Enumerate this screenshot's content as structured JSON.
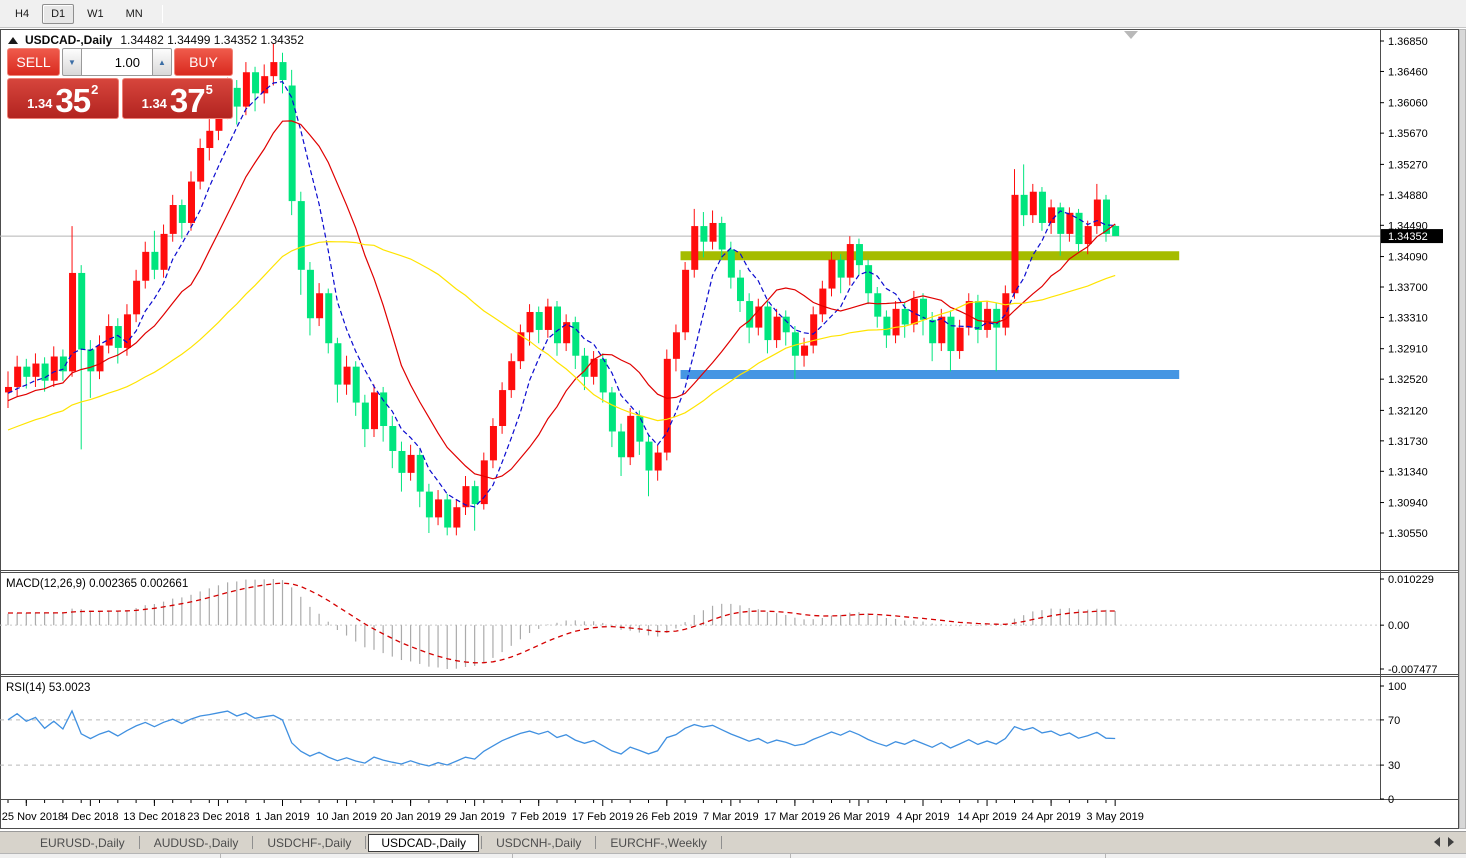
{
  "toolbar": {
    "timeframes": [
      "H4",
      "D1",
      "W1",
      "MN"
    ],
    "active": "D1"
  },
  "header": {
    "title": "USDCAD-,Daily",
    "ohlc": "1.34482 1.34499 1.34352 1.34352"
  },
  "trade_panel": {
    "sell_label": "SELL",
    "buy_label": "BUY",
    "volume": "1.00",
    "sell_price_big": "1.34",
    "sell_price_main": "35",
    "sell_price_sup": "2",
    "buy_price_big": "1.34",
    "buy_price_main": "37",
    "buy_price_sup": "5"
  },
  "price_axis": {
    "ticks": [
      "1.36850",
      "1.36460",
      "1.36060",
      "1.35670",
      "1.35270",
      "1.34880",
      "1.34490",
      "1.34090",
      "1.33700",
      "1.33310",
      "1.32910",
      "1.32520",
      "1.32120",
      "1.31730",
      "1.31340",
      "1.30940",
      "1.30550"
    ],
    "current": "1.34352"
  },
  "macd_panel": {
    "label": "MACD(12,26,9) 0.002365 0.002661",
    "axis_max": "0.010229",
    "axis_zero": "0.00",
    "axis_min": "-0.007477"
  },
  "rsi_panel": {
    "label": "RSI(14) 53.0023",
    "axis": [
      "100",
      "70",
      "30",
      "0"
    ]
  },
  "time_axis": {
    "labels": [
      "25 Nov 2018",
      "4 Dec 2018",
      "13 Dec 2018",
      "23 Dec 2018",
      "1 Jan 2019",
      "10 Jan 2019",
      "20 Jan 2019",
      "29 Jan 2019",
      "7 Feb 2019",
      "17 Feb 2019",
      "26 Feb 2019",
      "7 Mar 2019",
      "17 Mar 2019",
      "26 Mar 2019",
      "4 Apr 2019",
      "14 Apr 2019",
      "24 Apr 2019",
      "3 May 2019"
    ],
    "bars": [
      2,
      9,
      16,
      23,
      30,
      37,
      44,
      51,
      58,
      65,
      72,
      79,
      86,
      93,
      100,
      107,
      114,
      121
    ]
  },
  "bottom_tabs": {
    "items": [
      "EURUSD-,Daily",
      "AUDUSD-,Daily",
      "USDCHF-,Daily",
      "USDCAD-,Daily",
      "USDCNH-,Daily",
      "EURCHF-,Weekly"
    ],
    "active_index": 3
  },
  "colors": {
    "bull_candle": "#ff0d0d",
    "bear_candle": "#00e57e",
    "ma_fast": "#0a0acf",
    "ma_mid": "#e00000",
    "ma_slow": "#ffe400",
    "resistance_line": "#a5bc00",
    "support_line": "#4596e3",
    "ask_line": "#b4b4b4",
    "price_tag_bg": "#000000",
    "macd_histogram": "#ababab",
    "macd_signal": "#d40000",
    "rsi_line": "#4090e0",
    "panel_border": "#4d4d4d"
  },
  "chart_data": {
    "type": "candlestick",
    "symbol": "USDCAD-,Daily",
    "ask_price": 1.34352,
    "candles": [
      [
        1.3235,
        1.3262,
        1.3215,
        1.3242
      ],
      [
        1.3242,
        1.3282,
        1.323,
        1.3268
      ],
      [
        1.3268,
        1.3278,
        1.324,
        1.3255
      ],
      [
        1.3255,
        1.3285,
        1.3242,
        1.3272
      ],
      [
        1.3272,
        1.328,
        1.3236,
        1.325
      ],
      [
        1.325,
        1.3294,
        1.3242,
        1.3281
      ],
      [
        1.3281,
        1.329,
        1.325,
        1.3262
      ],
      [
        1.3262,
        1.3448,
        1.3255,
        1.3388
      ],
      [
        1.3388,
        1.3398,
        1.3162,
        1.329
      ],
      [
        1.329,
        1.3302,
        1.3228,
        1.3262
      ],
      [
        1.3262,
        1.3308,
        1.3252,
        1.3295
      ],
      [
        1.3295,
        1.3335,
        1.3285,
        1.332
      ],
      [
        1.332,
        1.333,
        1.3272,
        1.3292
      ],
      [
        1.3292,
        1.3348,
        1.3282,
        1.3335
      ],
      [
        1.3335,
        1.3392,
        1.3325,
        1.3378
      ],
      [
        1.3378,
        1.3428,
        1.3368,
        1.3415
      ],
      [
        1.3415,
        1.3442,
        1.338,
        1.3392
      ],
      [
        1.3392,
        1.345,
        1.3382,
        1.3438
      ],
      [
        1.3438,
        1.3488,
        1.3428,
        1.3475
      ],
      [
        1.3475,
        1.3482,
        1.3432,
        1.3452
      ],
      [
        1.3452,
        1.3518,
        1.3442,
        1.3505
      ],
      [
        1.3505,
        1.356,
        1.3495,
        1.3548
      ],
      [
        1.3548,
        1.3585,
        1.3532,
        1.357
      ],
      [
        1.357,
        1.361,
        1.3558,
        1.3598
      ],
      [
        1.3598,
        1.3638,
        1.3585,
        1.3625
      ],
      [
        1.3625,
        1.3635,
        1.3578,
        1.3601
      ],
      [
        1.3601,
        1.3658,
        1.359,
        1.3645
      ],
      [
        1.3645,
        1.3652,
        1.3595,
        1.3618
      ],
      [
        1.3618,
        1.3655,
        1.3605,
        1.364
      ],
      [
        1.364,
        1.3682,
        1.3628,
        1.3658
      ],
      [
        1.3658,
        1.367,
        1.3618,
        1.3635
      ],
      [
        1.3628,
        1.3648,
        1.3462,
        1.348
      ],
      [
        1.348,
        1.3492,
        1.336,
        1.3392
      ],
      [
        1.3392,
        1.3402,
        1.3308,
        1.333
      ],
      [
        1.333,
        1.3375,
        1.332,
        1.3362
      ],
      [
        1.3362,
        1.3368,
        1.3285,
        1.3298
      ],
      [
        1.3298,
        1.3305,
        1.3222,
        1.3245
      ],
      [
        1.3245,
        1.3282,
        1.3232,
        1.3268
      ],
      [
        1.3268,
        1.3275,
        1.3205,
        1.3222
      ],
      [
        1.3222,
        1.3232,
        1.3165,
        1.3188
      ],
      [
        1.3188,
        1.3245,
        1.3178,
        1.3235
      ],
      [
        1.3235,
        1.3242,
        1.3172,
        1.3192
      ],
      [
        1.3192,
        1.3205,
        1.3138,
        1.316
      ],
      [
        1.316,
        1.3172,
        1.3108,
        1.3132
      ],
      [
        1.3132,
        1.3168,
        1.3122,
        1.3155
      ],
      [
        1.3155,
        1.3162,
        1.3088,
        1.3108
      ],
      [
        1.3108,
        1.3118,
        1.3055,
        1.3075
      ],
      [
        1.3075,
        1.311,
        1.3065,
        1.3098
      ],
      [
        1.3098,
        1.3105,
        1.3052,
        1.3062
      ],
      [
        1.3062,
        1.3098,
        1.3052,
        1.3088
      ],
      [
        1.3088,
        1.3128,
        1.3078,
        1.3115
      ],
      [
        1.3115,
        1.3122,
        1.3058,
        1.3092
      ],
      [
        1.3092,
        1.3158,
        1.3085,
        1.3148
      ],
      [
        1.3148,
        1.3202,
        1.3138,
        1.3192
      ],
      [
        1.3192,
        1.3248,
        1.3182,
        1.3238
      ],
      [
        1.3238,
        1.3285,
        1.3228,
        1.3275
      ],
      [
        1.3275,
        1.3322,
        1.3265,
        1.3312
      ],
      [
        1.3312,
        1.3348,
        1.3295,
        1.3338
      ],
      [
        1.3338,
        1.3345,
        1.3298,
        1.3315
      ],
      [
        1.3315,
        1.3355,
        1.3305,
        1.3345
      ],
      [
        1.3345,
        1.3352,
        1.3282,
        1.3298
      ],
      [
        1.3298,
        1.3335,
        1.3288,
        1.3325
      ],
      [
        1.3325,
        1.3332,
        1.3265,
        1.3282
      ],
      [
        1.3282,
        1.3292,
        1.3238,
        1.3255
      ],
      [
        1.3255,
        1.3288,
        1.3245,
        1.3278
      ],
      [
        1.3278,
        1.3285,
        1.3222,
        1.3235
      ],
      [
        1.3235,
        1.3242,
        1.3165,
        1.3185
      ],
      [
        1.3185,
        1.3195,
        1.3128,
        1.3152
      ],
      [
        1.3152,
        1.3215,
        1.3142,
        1.3205
      ],
      [
        1.3205,
        1.3212,
        1.3155,
        1.3172
      ],
      [
        1.3172,
        1.318,
        1.3102,
        1.3135
      ],
      [
        1.3135,
        1.3168,
        1.3122,
        1.3158
      ],
      [
        1.3158,
        1.329,
        1.3148,
        1.3278
      ],
      [
        1.3278,
        1.3322,
        1.3262,
        1.3312
      ],
      [
        1.3312,
        1.3402,
        1.3302,
        1.3392
      ],
      [
        1.3392,
        1.347,
        1.3382,
        1.3448
      ],
      [
        1.3448,
        1.3466,
        1.3408,
        1.3428
      ],
      [
        1.3428,
        1.3468,
        1.3418,
        1.3452
      ],
      [
        1.3452,
        1.346,
        1.3405,
        1.3418
      ],
      [
        1.3418,
        1.3428,
        1.3368,
        1.3382
      ],
      [
        1.3382,
        1.3392,
        1.3338,
        1.3352
      ],
      [
        1.3352,
        1.3362,
        1.3298,
        1.3318
      ],
      [
        1.3318,
        1.3355,
        1.3308,
        1.3345
      ],
      [
        1.3345,
        1.3352,
        1.3285,
        1.3302
      ],
      [
        1.3302,
        1.3342,
        1.3292,
        1.3332
      ],
      [
        1.3332,
        1.334,
        1.3295,
        1.3312
      ],
      [
        1.3312,
        1.332,
        1.3252,
        1.3282
      ],
      [
        1.3282,
        1.3305,
        1.3268,
        1.3295
      ],
      [
        1.3295,
        1.3345,
        1.3285,
        1.3335
      ],
      [
        1.3335,
        1.3378,
        1.3325,
        1.3368
      ],
      [
        1.3368,
        1.3415,
        1.3358,
        1.3405
      ],
      [
        1.3405,
        1.3412,
        1.3362,
        1.3382
      ],
      [
        1.3382,
        1.3435,
        1.3372,
        1.3425
      ],
      [
        1.3425,
        1.3432,
        1.3385,
        1.3398
      ],
      [
        1.3398,
        1.3405,
        1.3348,
        1.3362
      ],
      [
        1.3362,
        1.337,
        1.3318,
        1.3332
      ],
      [
        1.3332,
        1.334,
        1.3292,
        1.3308
      ],
      [
        1.3308,
        1.3352,
        1.3298,
        1.3342
      ],
      [
        1.3342,
        1.335,
        1.3305,
        1.3322
      ],
      [
        1.3322,
        1.3365,
        1.3312,
        1.3355
      ],
      [
        1.3355,
        1.3362,
        1.3308,
        1.3328
      ],
      [
        1.3328,
        1.3338,
        1.3275,
        1.3298
      ],
      [
        1.3298,
        1.3342,
        1.3288,
        1.3332
      ],
      [
        1.3332,
        1.334,
        1.3262,
        1.3288
      ],
      [
        1.3288,
        1.3328,
        1.3278,
        1.3318
      ],
      [
        1.3318,
        1.3362,
        1.3308,
        1.3352
      ],
      [
        1.3352,
        1.336,
        1.3298,
        1.3315
      ],
      [
        1.3315,
        1.3352,
        1.3305,
        1.3342
      ],
      [
        1.3342,
        1.335,
        1.3262,
        1.3318
      ],
      [
        1.3318,
        1.3372,
        1.3308,
        1.3362
      ],
      [
        1.3362,
        1.3521,
        1.3355,
        1.3488
      ],
      [
        1.3488,
        1.3527,
        1.3448,
        1.3462
      ],
      [
        1.3462,
        1.3502,
        1.3452,
        1.3492
      ],
      [
        1.3492,
        1.3498,
        1.3442,
        1.3452
      ],
      [
        1.3452,
        1.3482,
        1.3438,
        1.3472
      ],
      [
        1.3472,
        1.3478,
        1.341,
        1.3438
      ],
      [
        1.3438,
        1.3472,
        1.3428,
        1.3465
      ],
      [
        1.3465,
        1.347,
        1.3415,
        1.3425
      ],
      [
        1.3425,
        1.3455,
        1.3412,
        1.3448
      ],
      [
        1.3448,
        1.3502,
        1.3438,
        1.3482
      ],
      [
        1.3482,
        1.3488,
        1.3428,
        1.3438
      ],
      [
        1.34482,
        1.34499,
        1.34352,
        1.34352
      ]
    ],
    "prehistory_closes": [
      1.3062,
      1.3075,
      1.3068,
      1.3082,
      1.3095,
      1.3088,
      1.3102,
      1.3115,
      1.3108,
      1.3122,
      1.3135,
      1.3128,
      1.3142,
      1.3138,
      1.3152,
      1.3165,
      1.3158,
      1.3172,
      1.3168,
      1.3182,
      1.3175,
      1.3188,
      1.3195,
      1.3185,
      1.3198,
      1.3192,
      1.3205,
      1.3212,
      1.3202,
      1.3215,
      1.3208,
      1.3222,
      1.3218,
      1.3228,
      1.3222,
      1.3232,
      1.3226,
      1.3238,
      1.323,
      1.3235
    ],
    "moving_averages": [
      {
        "name": "fast",
        "period": 6,
        "style": "dashed"
      },
      {
        "name": "mid",
        "period": 13,
        "style": "solid"
      },
      {
        "name": "slow",
        "period": 34,
        "style": "solid"
      }
    ],
    "levels": [
      {
        "name": "resistance",
        "price": 1.341,
        "from_bar": 73.5,
        "to_bar": 128
      },
      {
        "name": "support",
        "price": 1.3258,
        "from_bar": 73.5,
        "to_bar": 128
      }
    ],
    "indicators": {
      "macd": {
        "fast": 12,
        "slow": 26,
        "signal": 9,
        "value": 0.002365,
        "signal_value": 0.002661
      },
      "rsi": {
        "period": 14,
        "value": 53.0023,
        "levels": [
          70,
          30
        ]
      }
    },
    "ylim": [
      1.304,
      1.37
    ]
  }
}
